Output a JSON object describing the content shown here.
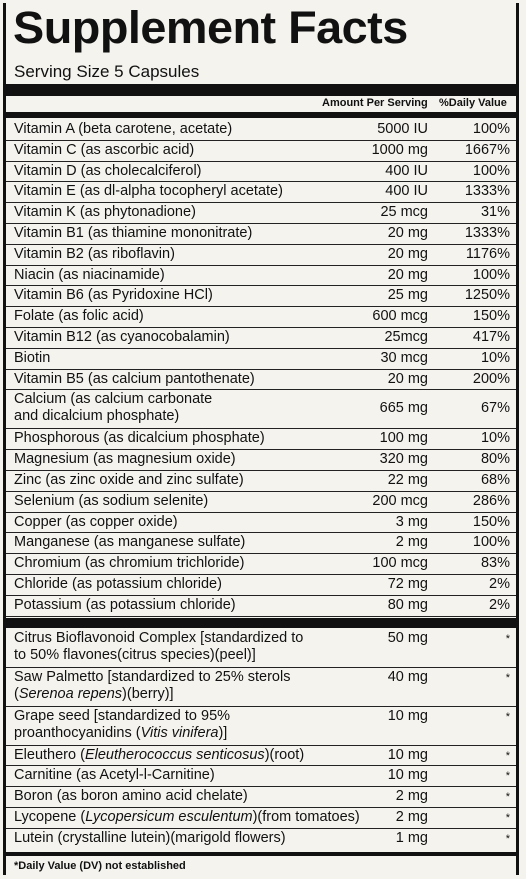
{
  "title": "Supplement Facts",
  "serving_size": "Serving Size 5 Capsules",
  "headers": {
    "amount": "Amount Per Serving",
    "dv": "%Daily Value"
  },
  "vitamins": [
    {
      "name": "Vitamin A (beta carotene, acetate)",
      "amount": "5000 IU",
      "dv": "100%"
    },
    {
      "name": "Vitamin C (as ascorbic acid)",
      "amount": "1000 mg",
      "dv": "1667%"
    },
    {
      "name": "Vitamin D (as cholecalciferol)",
      "amount": "400 IU",
      "dv": "100%"
    },
    {
      "name": "Vitamin E (as dl-alpha tocopheryl acetate)",
      "amount": "400 IU",
      "dv": "1333%"
    },
    {
      "name": "Vitamin K (as phytonadione)",
      "amount": "25 mcg",
      "dv": "31%"
    },
    {
      "name": "Vitamin B1 (as thiamine mononitrate)",
      "amount": "20 mg",
      "dv": "1333%"
    },
    {
      "name": "Vitamin B2 (as riboflavin)",
      "amount": "20 mg",
      "dv": "1176%"
    },
    {
      "name": "Niacin (as niacinamide)",
      "amount": "20 mg",
      "dv": "100%"
    },
    {
      "name": "Vitamin B6 (as Pyridoxine HCl)",
      "amount": "25 mg",
      "dv": "1250%"
    },
    {
      "name": "Folate (as folic acid)",
      "amount": "600 mcg",
      "dv": "150%"
    },
    {
      "name": "Vitamin B12 (as cyanocobalamin)",
      "amount": "25mcg",
      "dv": "417%"
    },
    {
      "name": "Biotin",
      "amount": "30 mcg",
      "dv": "10%"
    },
    {
      "name": "Vitamin B5 (as calcium pantothenate)",
      "amount": "20 mg",
      "dv": "200%"
    },
    {
      "name": "Calcium (as calcium carbonate",
      "name2": "and dicalcium phosphate)",
      "amount": "665 mg",
      "dv": "67%"
    },
    {
      "name": "Phosphorous (as dicalcium phosphate)",
      "amount": "100 mg",
      "dv": "10%"
    },
    {
      "name": "Magnesium (as magnesium oxide)",
      "amount": "320 mg",
      "dv": "80%"
    },
    {
      "name": "Zinc (as zinc oxide and zinc sulfate)",
      "amount": "22 mg",
      "dv": "68%"
    },
    {
      "name": "Selenium (as sodium selenite)",
      "amount": "200 mcg",
      "dv": "286%"
    },
    {
      "name": "Copper (as copper oxide)",
      "amount": "3 mg",
      "dv": "150%"
    },
    {
      "name": "Manganese (as manganese sulfate)",
      "amount": "2 mg",
      "dv": "100%"
    },
    {
      "name": "Chromium (as chromium trichloride)",
      "amount": "100 mcg",
      "dv": "83%"
    },
    {
      "name": "Chloride (as potassium chloride)",
      "amount": "72 mg",
      "dv": "2%"
    },
    {
      "name": "Potassium (as potassium chloride)",
      "amount": "80 mg",
      "dv": "2%"
    }
  ],
  "others": [
    {
      "name": "Citrus Bioflavonoid Complex [standardized to",
      "name2": "to 50% flavones(citrus species)(peel)]",
      "amount": "50 mg",
      "dv": "*"
    },
    {
      "name": "Saw Palmetto [standardized to 25% sterols",
      "name2_parts": [
        {
          "t": "(",
          "i": false
        },
        {
          "t": "Serenoa repens",
          "i": true
        },
        {
          "t": ")(berry)]",
          "i": false
        }
      ],
      "amount": "40 mg",
      "dv": "*"
    },
    {
      "name": "Grape seed [standardized to 95%",
      "name2_parts": [
        {
          "t": "proanthocyanidins (",
          "i": false
        },
        {
          "t": "Vitis vinifera",
          "i": true
        },
        {
          "t": ")]",
          "i": false
        }
      ],
      "amount": "10 mg",
      "dv": "*"
    },
    {
      "name_parts": [
        {
          "t": "Eleuthero (",
          "i": false
        },
        {
          "t": "Eleutherococcus senticosus",
          "i": true
        },
        {
          "t": ")(root)",
          "i": false
        }
      ],
      "amount": "10 mg",
      "dv": "*"
    },
    {
      "name": "Carnitine (as Acetyl-l-Carnitine)",
      "amount": "10 mg",
      "dv": "*"
    },
    {
      "name": "Boron (as boron amino acid chelate)",
      "amount": "2 mg",
      "dv": "*"
    },
    {
      "name_parts": [
        {
          "t": "Lycopene (",
          "i": false
        },
        {
          "t": "Lycopersicum esculentum",
          "i": true
        },
        {
          "t": ")(from tomatoes)",
          "i": false
        }
      ],
      "amount": "2 mg",
      "dv": "*"
    },
    {
      "name": "Lutein (crystalline lutein)(marigold flowers)",
      "amount": "1 mg",
      "dv": "*"
    }
  ],
  "footnote": "*Daily Value (DV) not established"
}
